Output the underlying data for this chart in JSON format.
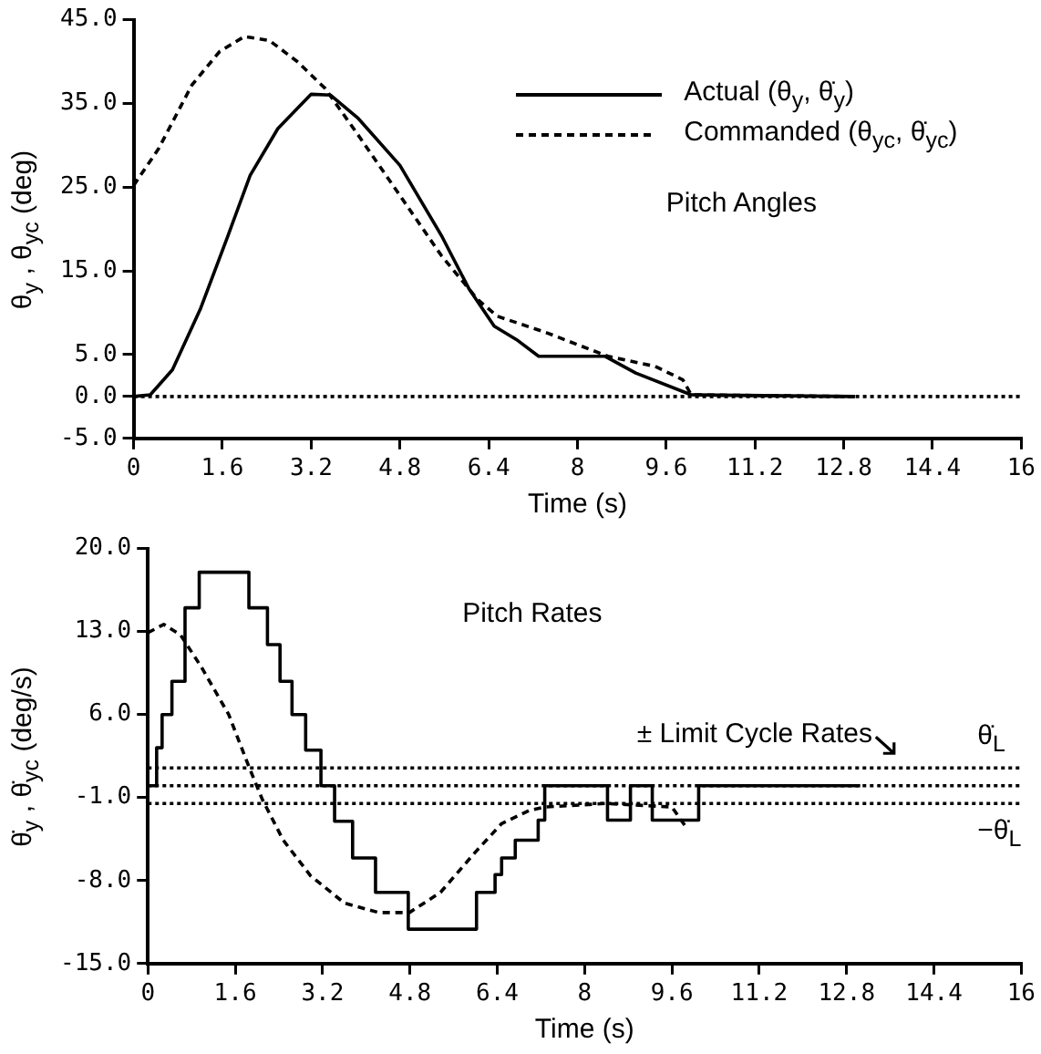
{
  "chart_data": [
    {
      "type": "line",
      "annotations": [
        "Pitch Angles"
      ],
      "xlabel": "Time (s)",
      "ylabel": "θ$_{y}$ , θ$_{yc}$ (deg)",
      "xlim": [
        0,
        16
      ],
      "xticks": [
        0,
        1.6,
        3.2,
        4.8,
        6.4,
        8,
        9.6,
        11.2,
        12.8,
        14.4,
        16
      ],
      "ylim": [
        -5,
        45
      ],
      "yticks": [
        {
          "value": -5,
          "label": "-5.0"
        },
        {
          "value": 0,
          "label": "0.0"
        },
        {
          "value": 5,
          "label": "5.0"
        },
        {
          "value": 15,
          "label": "15.0"
        },
        {
          "value": 25,
          "label": "25.0"
        },
        {
          "value": 35,
          "label": "35.0"
        },
        {
          "value": 45,
          "label": "45.0"
        }
      ],
      "grid": false,
      "legend": "top right",
      "marker": "none",
      "ref_lines": [
        {
          "axis": "y",
          "value": 0,
          "color": "#000000",
          "line_style": "dotted"
        }
      ],
      "series": [
        {
          "name": "Actual (θ$_{y}$, θ̇$_{y}$)",
          "color": "#000000",
          "line_style": "solid",
          "x": [
            0,
            0.3,
            0.7,
            1.2,
            1.7,
            2.1,
            2.6,
            3.2,
            3.55,
            4.05,
            4.8,
            5.55,
            6.05,
            6.5,
            6.9,
            7.3,
            8.5,
            9.05,
            10.05,
            13.0
          ],
          "values": [
            0,
            0.2,
            3.2,
            10.4,
            19.2,
            26.4,
            32,
            36.1,
            36,
            33.2,
            27.6,
            19.2,
            12.8,
            8.4,
            6.8,
            4.8,
            4.8,
            2.8,
            0.2,
            0
          ]
        },
        {
          "name": "Commanded (θ$_{yc}$, θ̇$_{yc}$)",
          "color": "#000000",
          "line_style": "dashed",
          "x": [
            0,
            0.45,
            1.05,
            1.55,
            2.0,
            2.45,
            2.95,
            3.45,
            4.05,
            4.8,
            5.55,
            6.2,
            6.55,
            7.45,
            8.55,
            9.4,
            9.9,
            10.05,
            13.0
          ],
          "values": [
            25.2,
            29.6,
            37.2,
            41.2,
            43,
            42.5,
            40,
            36.8,
            31.2,
            24,
            16.8,
            11.6,
            9.6,
            7.6,
            4.8,
            3.6,
            2.0,
            0.2,
            0
          ]
        }
      ]
    },
    {
      "type": "line",
      "annotations": [
        "Pitch Rates",
        "± Limit Cycle Rates"
      ],
      "xlabel": "Time (s)",
      "ylabel": "θ̇$_{y}$ , θ̇$_{yc}$ (deg/s)",
      "xlim": [
        0,
        16
      ],
      "xticks": [
        0,
        1.6,
        3.2,
        4.8,
        6.4,
        8,
        9.6,
        11.2,
        12.8,
        14.4,
        16
      ],
      "ylim": [
        -15,
        20
      ],
      "yticks": [
        {
          "value": -15,
          "label": "-15.0"
        },
        {
          "value": -8,
          "label": "-8.0"
        },
        {
          "value": -1,
          "label": "-1.0"
        },
        {
          "value": 6,
          "label": "6.0"
        },
        {
          "value": 13,
          "label": "13.0"
        },
        {
          "value": 20,
          "label": "20.0"
        }
      ],
      "grid": false,
      "legend": false,
      "marker": "none",
      "ref_lines": [
        {
          "axis": "y",
          "value": 1.5,
          "label": "θ̇$_{L}$",
          "color": "#000000",
          "line_style": "dotted"
        },
        {
          "axis": "y",
          "value": 0,
          "color": "#000000",
          "line_style": "dotted"
        },
        {
          "axis": "y",
          "value": -1.5,
          "label": "−θ̇$_{L}$",
          "color": "#000000",
          "line_style": "dotted"
        }
      ],
      "series": [
        {
          "type": "step",
          "color": "#000000",
          "line_style": "solid",
          "x": [
            0,
            0.16,
            0.26,
            0.44,
            0.68,
            0.94,
            1.85,
            2.19,
            2.42,
            2.64,
            2.89,
            3.17,
            3.42,
            3.75,
            4.17,
            4.77,
            6.02,
            6.36,
            6.48,
            6.73,
            7.15,
            7.27,
            8.42,
            8.84,
            9.24,
            10.09,
            13.05
          ],
          "values": [
            0,
            3.2,
            6.0,
            8.8,
            15.0,
            18.0,
            15.0,
            11.9,
            8.8,
            6.0,
            3.0,
            0,
            -3.0,
            -6.1,
            -9.0,
            -12.1,
            -9.0,
            -7.5,
            -6.1,
            -4.6,
            -2.9,
            0,
            -2.9,
            0,
            -2.9,
            0,
            0
          ]
        },
        {
          "color": "#000000",
          "line_style": "dashed",
          "x": [
            0,
            0.29,
            0.6,
            0.98,
            1.48,
            1.85,
            2.1,
            2.48,
            2.98,
            3.6,
            4.23,
            4.79,
            5.36,
            5.98,
            6.48,
            6.98,
            7.27,
            8.4,
            9.6,
            9.86
          ],
          "values": [
            12.9,
            13.6,
            12.7,
            10,
            6.0,
            1.6,
            -1.2,
            -4.6,
            -7.6,
            -9.9,
            -10.7,
            -10.7,
            -9.0,
            -5.7,
            -3.2,
            -2.1,
            -1.8,
            -1.5,
            -1.8,
            -3.5
          ]
        }
      ]
    }
  ]
}
